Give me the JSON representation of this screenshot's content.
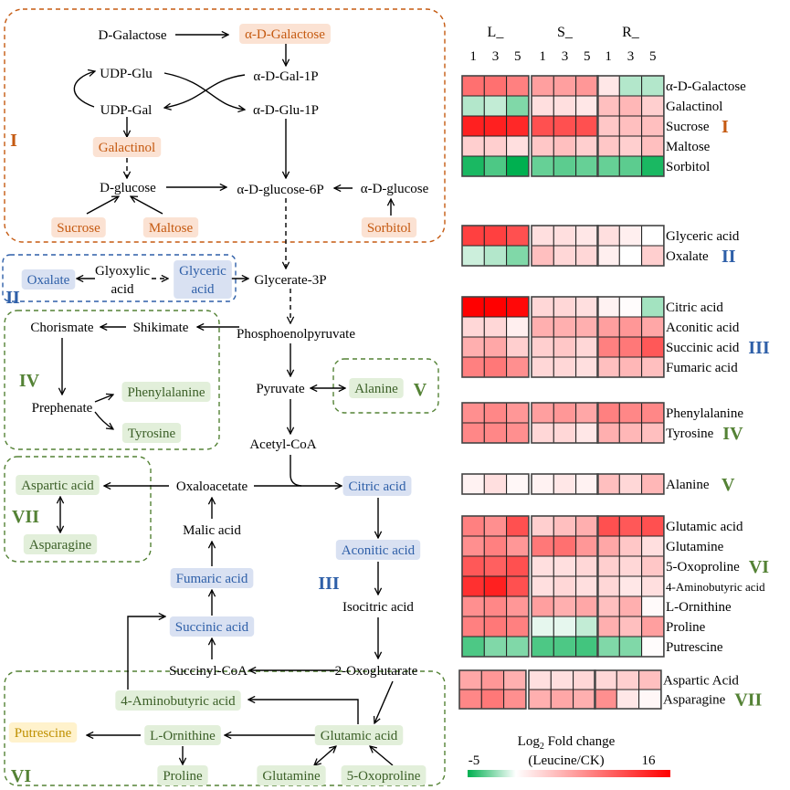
{
  "colors": {
    "orange": "#c55a11",
    "orange_bg": "#fbe2d3",
    "blue": "#2e5fa8",
    "blue_bg": "#d9e1f2",
    "green": "#548235",
    "green_text": "#3b5f27",
    "green_bg": "#e2efda",
    "yellow_text": "#bf9000",
    "yellow_bg": "#fff2cc",
    "heat_low": "#00b050",
    "heat_mid": "#ffffff",
    "heat_high": "#ff0000"
  },
  "pathway": {
    "nodes": [
      {
        "id": "d-galactose",
        "label": "D-Galactose",
        "type": "plain"
      },
      {
        "id": "a-d-galactose",
        "label": "α-D-Galactose",
        "type": "orange"
      },
      {
        "id": "udp-glu",
        "label": "UDP-Glu",
        "type": "plain"
      },
      {
        "id": "a-d-gal-1p",
        "label": "α-D-Gal-1P",
        "type": "plain"
      },
      {
        "id": "udp-gal",
        "label": "UDP-Gal",
        "type": "plain"
      },
      {
        "id": "a-d-glu-1p",
        "label": "α-D-Glu-1P",
        "type": "plain"
      },
      {
        "id": "galactinol",
        "label": "Galactinol",
        "type": "orange"
      },
      {
        "id": "d-glucose",
        "label": "D-glucose",
        "type": "plain"
      },
      {
        "id": "a-d-glucose-6p",
        "label": "α-D-glucose-6P",
        "type": "plain"
      },
      {
        "id": "a-d-glucose",
        "label": "α-D-glucose",
        "type": "plain"
      },
      {
        "id": "sucrose",
        "label": "Sucrose",
        "type": "orange"
      },
      {
        "id": "maltose",
        "label": "Maltose",
        "type": "orange"
      },
      {
        "id": "sorbitol",
        "label": "Sorbitol",
        "type": "orange"
      },
      {
        "id": "oxalate",
        "label": "Oxalate",
        "type": "blue"
      },
      {
        "id": "glyoxylic",
        "label": "Glyoxylic",
        "type": "plain"
      },
      {
        "id": "glyoxylic-acid",
        "label": "acid",
        "type": "plain"
      },
      {
        "id": "glyceric",
        "label": "Glyceric",
        "type": "blue"
      },
      {
        "id": "glyceric-acid",
        "label": "acid",
        "type": "blue-text"
      },
      {
        "id": "glycerate-3p",
        "label": "Glycerate-3P",
        "type": "plain"
      },
      {
        "id": "chorismate",
        "label": "Chorismate",
        "type": "plain"
      },
      {
        "id": "shikimate",
        "label": "Shikimate",
        "type": "plain"
      },
      {
        "id": "phosphoenolpyruvate",
        "label": "Phosphoenolpyruvate",
        "type": "plain"
      },
      {
        "id": "prephenate",
        "label": "Prephenate",
        "type": "plain"
      },
      {
        "id": "phenylalanine",
        "label": "Phenylalanine",
        "type": "green"
      },
      {
        "id": "tyrosine",
        "label": "Tyrosine",
        "type": "green"
      },
      {
        "id": "pyruvate",
        "label": "Pyruvate",
        "type": "plain"
      },
      {
        "id": "alanine",
        "label": "Alanine",
        "type": "green"
      },
      {
        "id": "acetyl-coa",
        "label": "Acetyl-CoA",
        "type": "plain"
      },
      {
        "id": "aspartic-acid",
        "label": "Aspartic acid",
        "type": "green"
      },
      {
        "id": "oxaloacetate",
        "label": "Oxaloacetate",
        "type": "plain"
      },
      {
        "id": "citric-acid",
        "label": "Citric acid",
        "type": "blue"
      },
      {
        "id": "asparagine",
        "label": "Asparagine",
        "type": "green"
      },
      {
        "id": "malic-acid",
        "label": "Malic acid",
        "type": "plain"
      },
      {
        "id": "aconitic-acid",
        "label": "Aconitic acid",
        "type": "blue"
      },
      {
        "id": "fumaric-acid",
        "label": "Fumaric acid",
        "type": "blue"
      },
      {
        "id": "isocitric-acid",
        "label": "Isocitric acid",
        "type": "plain"
      },
      {
        "id": "succinic-acid",
        "label": "Succinic acid",
        "type": "blue"
      },
      {
        "id": "succinyl-coa",
        "label": "Succinyl-CoA",
        "type": "plain"
      },
      {
        "id": "2-oxoglutarate",
        "label": "2-Oxoglutarate",
        "type": "plain"
      },
      {
        "id": "4-aminobutyric-acid",
        "label": "4-Aminobutyric acid",
        "type": "green"
      },
      {
        "id": "putrescine",
        "label": "Putrescine",
        "type": "yellow"
      },
      {
        "id": "l-ornithine",
        "label": "L-Ornithine",
        "type": "green"
      },
      {
        "id": "glutamic-acid",
        "label": "Glutamic acid",
        "type": "green"
      },
      {
        "id": "proline",
        "label": "Proline",
        "type": "green"
      },
      {
        "id": "glutamine",
        "label": "Glutamine",
        "type": "green"
      },
      {
        "id": "5-oxoproline",
        "label": "5-Oxoproline",
        "type": "green"
      }
    ],
    "groups": [
      {
        "numeral": "I",
        "color": "orange"
      },
      {
        "numeral": "II",
        "color": "blue"
      },
      {
        "numeral": "III",
        "color": "blue"
      },
      {
        "numeral": "IV",
        "color": "green"
      },
      {
        "numeral": "V",
        "color": "green"
      },
      {
        "numeral": "VI",
        "color": "green"
      },
      {
        "numeral": "VII",
        "color": "green"
      }
    ]
  },
  "chart_data": {
    "type": "heatmap",
    "column_groups": [
      "L_",
      "S_",
      "R_"
    ],
    "column_subgroups": [
      "1",
      "3",
      "5"
    ],
    "blocks": [
      {
        "numeral": "I",
        "rows": [
          {
            "name": "α-D-Galactose",
            "values": [
              9,
              9,
              8,
              6,
              6,
              6.5,
              1.5,
              -1.5,
              -1.5
            ]
          },
          {
            "name": "Galactinol",
            "values": [
              -1.5,
              -1.2,
              -2.5,
              2,
              2,
              1.5,
              4,
              4.5,
              3
            ]
          },
          {
            "name": "Sucrose",
            "values": [
              14,
              14,
              13.5,
              11,
              11,
              11,
              3.5,
              4,
              4
            ]
          },
          {
            "name": "Maltose",
            "values": [
              3,
              3,
              2,
              3.5,
              4,
              3,
              3.5,
              3,
              4
            ]
          },
          {
            "name": "Sorbitol",
            "values": [
              -4.5,
              -3.5,
              -5,
              -3,
              -3.2,
              -3,
              -3,
              -3.2,
              -4.5
            ]
          }
        ]
      },
      {
        "numeral": "II",
        "rows": [
          {
            "name": "Glyceric acid",
            "values": [
              12,
              12,
              11,
              2,
              2,
              1.5,
              2,
              1,
              0
            ]
          },
          {
            "name": "Oxalate",
            "values": [
              -1,
              -1.5,
              -2.5,
              4,
              2.5,
              2.5,
              1,
              0,
              3
            ]
          }
        ]
      },
      {
        "numeral": "III",
        "rows": [
          {
            "name": "Citric acid",
            "values": [
              16,
              16,
              15.5,
              2.5,
              2.5,
              2,
              0.8,
              0.2,
              -1.8
            ]
          },
          {
            "name": "Aconitic acid",
            "values": [
              2.5,
              2.5,
              1,
              5,
              5,
              5,
              6,
              6.5,
              5.5
            ]
          },
          {
            "name": "Succinic acid",
            "values": [
              5,
              5.5,
              3,
              3,
              3.5,
              2.5,
              8,
              8.5,
              10.5
            ]
          },
          {
            "name": "Fumaric acid",
            "values": [
              8,
              8.5,
              7,
              2.5,
              2.5,
              2,
              4,
              4.5,
              4
            ]
          }
        ]
      },
      {
        "numeral": "IV",
        "rows": [
          {
            "name": "Phenylalanine",
            "values": [
              7,
              7.5,
              6.5,
              6,
              6.5,
              5.5,
              8,
              7.5,
              7.5
            ]
          },
          {
            "name": "Tyrosine",
            "values": [
              7.5,
              7.5,
              7,
              2.5,
              2.5,
              1.5,
              5,
              4.5,
              4
            ]
          }
        ]
      },
      {
        "numeral": "V",
        "rows": [
          {
            "name": "Alanine",
            "values": [
              0.8,
              2,
              0.5,
              0.8,
              1.5,
              0.8,
              4,
              2.5,
              4.5
            ]
          }
        ]
      },
      {
        "numeral": "VI",
        "rows": [
          {
            "name": "Glutamic acid",
            "values": [
              8,
              7,
              11,
              3,
              4,
              5,
              11,
              10.5,
              11
            ]
          },
          {
            "name": "Glutamine",
            "values": [
              7,
              8,
              6.5,
              8.5,
              9,
              6.5,
              5.5,
              3.5,
              2
            ]
          },
          {
            "name": "5-Oxoproline",
            "values": [
              10.5,
              10,
              11,
              2,
              2,
              2.5,
              3,
              2.5,
              3.5
            ]
          },
          {
            "name": "4-Aminobutyric acid",
            "values": [
              13,
              14,
              11,
              2,
              2.5,
              2,
              2.5,
              1.5,
              2
            ]
          },
          {
            "name": "L-Ornithine",
            "values": [
              7,
              7.5,
              6.5,
              6,
              5,
              5.5,
              4,
              5,
              0.3
            ]
          },
          {
            "name": "Proline",
            "values": [
              8,
              8.5,
              8,
              -0.5,
              -0.5,
              -1.2,
              5,
              4,
              6
            ]
          },
          {
            "name": "Putrescine",
            "values": [
              -3.5,
              -2.5,
              -2.5,
              -3.5,
              -3.5,
              -3.7,
              -2.5,
              -2.5,
              0.2
            ]
          }
        ]
      },
      {
        "numeral": "VII",
        "rows": [
          {
            "name": "Aspartic Acid",
            "values": [
              5.5,
              6.5,
              5,
              2,
              2,
              2.5,
              2.5,
              3,
              4
            ]
          },
          {
            "name": "Asparagine",
            "values": [
              7.5,
              8.5,
              7,
              5,
              5.5,
              5,
              7,
              1.5,
              0.5
            ]
          }
        ]
      }
    ],
    "legend": {
      "title": "Log",
      "title_sub": "2",
      "title_rest": " Fold change",
      "subtitle": "(Leucine/CK)",
      "min_label": "-5",
      "max_label": "16",
      "min": -5,
      "max": 16
    }
  }
}
